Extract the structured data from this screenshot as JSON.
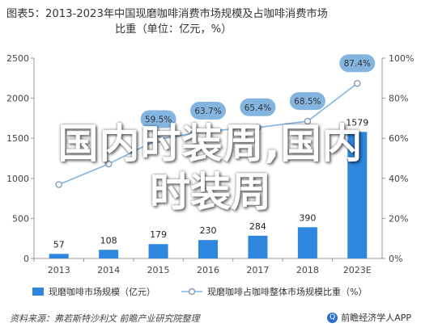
{
  "title_line1": "图表5：2013-2023年中国现磨咖啡消费市场规模及占咖啡消费市场",
  "title_line2": "比重（单位：亿元，%）",
  "source": "资料来源：弗若斯特沙利文 前瞻产业研究院整理",
  "logo_text": "前瞻经济学人APP",
  "overlay_line1": "国内时装周,国内",
  "overlay_line2": "时装周",
  "colors": {
    "bar": "#2e86de",
    "line": "#7fb5e6",
    "marker_fill": "#ffffff",
    "label_bg": "#6fa8dc",
    "axis": "#999999"
  },
  "chart_data": {
    "type": "bar",
    "categories": [
      "2013",
      "2014",
      "2015",
      "2016",
      "2017",
      "2018",
      "2023E"
    ],
    "series": [
      {
        "name": "现磨咖啡市场规模（亿元）",
        "type": "bar",
        "axis": "left",
        "values": [
          57,
          108,
          179,
          230,
          284,
          390,
          1579
        ]
      },
      {
        "name": "现磨咖啡占咖啡整体市场规模比重（%）",
        "type": "line",
        "axis": "right",
        "values": [
          36.9,
          47.2,
          59.5,
          63.7,
          65.4,
          68.5,
          87.4
        ]
      }
    ],
    "bar_labels": [
      "57",
      "108",
      "179",
      "230",
      "284",
      "390",
      "1579"
    ],
    "line_labels": [
      "",
      "",
      "59.5%",
      "63.7%",
      "65.4%",
      "68.5%",
      "87.4%"
    ],
    "y_left": {
      "ticks": [
        "0",
        "500",
        "1000",
        "1500",
        "2000",
        "2500"
      ],
      "min": 0,
      "max": 2500
    },
    "y_right": {
      "ticks": [
        "0%",
        "20%",
        "40%",
        "60%",
        "80%",
        "100%"
      ],
      "min": 0,
      "max": 100
    },
    "legend": [
      "现磨咖啡市场规模（亿元）",
      "现磨咖啡占咖啡整体市场规模比重（%）"
    ]
  }
}
